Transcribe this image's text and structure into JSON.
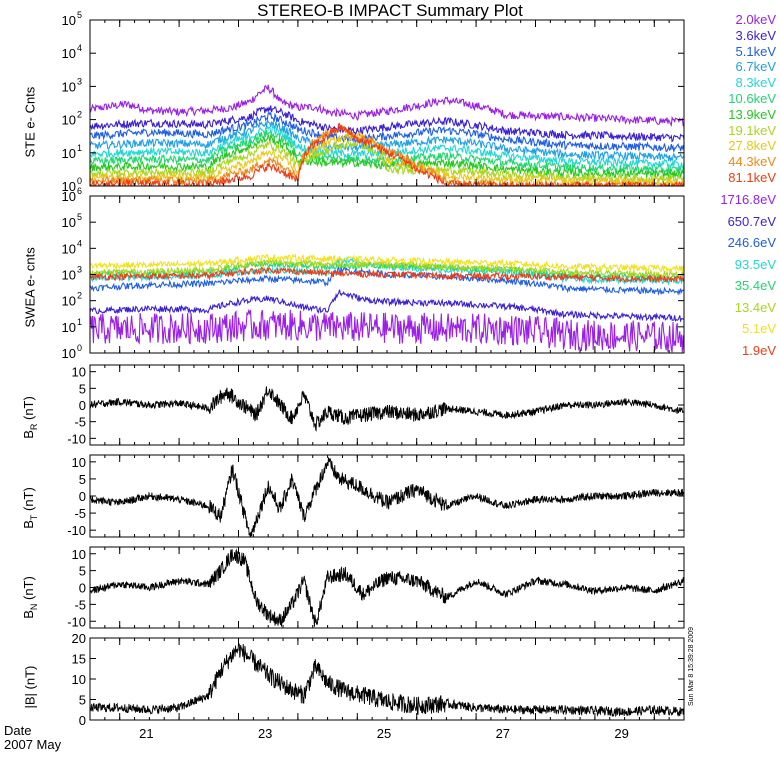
{
  "title": "STEREO-B IMPACT Summary Plot",
  "date_label": "Date",
  "month_label": "2007 May",
  "timestamp": "Sun Mar  8 15:39:28 2009",
  "x_ticks": [
    "21",
    "23",
    "25",
    "27",
    "29"
  ],
  "chart_data": [
    {
      "type": "line",
      "ylabel": "STE e- Cnts",
      "ylog": true,
      "ylim": [
        1,
        100000
      ],
      "y_ticks": [
        "10^0",
        "10^1",
        "10^2",
        "10^3",
        "10^4",
        "10^5"
      ],
      "series": [
        {
          "name": "2.0keV",
          "color": "#9b1fe8",
          "x": [
            20.0,
            20.6,
            21.0,
            21.5,
            22.0,
            22.4,
            22.7,
            23.0,
            23.2,
            23.5,
            23.8,
            24.0,
            24.5,
            25.0,
            25.5,
            26.0,
            26.5,
            27.0,
            28.0,
            29.0,
            30.0
          ],
          "values": [
            200,
            290,
            190,
            170,
            190,
            230,
            350,
            900,
            330,
            230,
            240,
            170,
            130,
            180,
            260,
            380,
            260,
            140,
            120,
            100,
            85
          ]
        },
        {
          "name": "3.6keV",
          "color": "#3a1fd6",
          "x": [
            20.0,
            21.0,
            22.0,
            22.7,
            23.0,
            23.5,
            24.0,
            24.5,
            25.0,
            26.0,
            27.0,
            28.0,
            30.0
          ],
          "values": [
            65,
            80,
            70,
            120,
            220,
            90,
            55,
            45,
            60,
            90,
            45,
            35,
            28
          ]
        },
        {
          "name": "5.1keV",
          "color": "#1e5de8",
          "x": [
            20.0,
            21.0,
            22.0,
            22.7,
            23.0,
            23.5,
            24.0,
            24.5,
            25.0,
            26.0,
            27.0,
            28.0,
            30.0
          ],
          "values": [
            32,
            42,
            36,
            70,
            130,
            50,
            30,
            25,
            32,
            48,
            25,
            17,
            14
          ]
        },
        {
          "name": "6.7keV",
          "color": "#1fa0e8",
          "x": [
            20.0,
            21.0,
            22.0,
            22.7,
            23.0,
            23.5,
            24.0,
            24.5,
            25.0,
            26.0,
            27.0,
            28.0,
            30.0
          ],
          "values": [
            16,
            20,
            18,
            45,
            80,
            26,
            16,
            14,
            17,
            25,
            13,
            9,
            7
          ]
        },
        {
          "name": "8.3keV",
          "color": "#22d6d6",
          "x": [
            20.0,
            21.0,
            22.0,
            22.7,
            23.0,
            23.5,
            24.0,
            24.5,
            25.0,
            26.0,
            27.0,
            28.0,
            30.0
          ],
          "values": [
            9,
            11,
            10,
            30,
            55,
            15,
            10,
            9,
            10,
            14,
            8,
            5.5,
            4.5
          ]
        },
        {
          "name": "10.6keV",
          "color": "#22d670",
          "x": [
            20.0,
            21.0,
            22.0,
            22.7,
            23.0,
            23.5,
            24.0,
            24.5,
            25.0,
            26.0,
            27.0,
            28.0,
            30.0
          ],
          "values": [
            5.5,
            6.5,
            6,
            22,
            40,
            9,
            7,
            6.5,
            6,
            8,
            5,
            3.6,
            3
          ]
        },
        {
          "name": "13.9keV",
          "color": "#24c81e",
          "x": [
            20.0,
            21.0,
            22.0,
            22.7,
            23.0,
            23.5,
            24.0,
            24.5,
            25.0,
            26.0,
            27.0,
            28.0,
            30.0
          ],
          "values": [
            3.6,
            4,
            3.8,
            15,
            28,
            6,
            5,
            5,
            4,
            5,
            3.2,
            2.5,
            2.2
          ]
        },
        {
          "name": "19.1keV",
          "color": "#a8d61e",
          "x": [
            20.0,
            21.0,
            22.0,
            22.7,
            23.0,
            23.5,
            24.0,
            24.5,
            25.0,
            26.0,
            27.0,
            28.0,
            30.0
          ],
          "values": [
            2.4,
            2.6,
            2.5,
            9,
            18,
            4,
            12,
            20,
            3,
            3,
            2.2,
            1.8,
            1.6
          ]
        },
        {
          "name": "27.8keV",
          "color": "#e8c81e",
          "x": [
            20.0,
            21.0,
            22.0,
            22.7,
            23.0,
            23.5,
            24.0,
            24.5,
            25.0,
            26.0,
            27.0,
            28.0,
            30.0
          ],
          "values": [
            1.8,
            1.9,
            1.8,
            5,
            10,
            2.6,
            20,
            35,
            6,
            2,
            1.6,
            1.4,
            1.3
          ]
        },
        {
          "name": "44.3keV",
          "color": "#f08a1a",
          "x": [
            20.0,
            21.0,
            22.0,
            22.7,
            23.0,
            23.5,
            24.0,
            24.2,
            24.5,
            25.0,
            25.5,
            26.0,
            27.0,
            30.0
          ],
          "values": [
            1.4,
            1.5,
            1.4,
            3,
            6,
            1.8,
            40,
            55,
            30,
            12,
            4,
            1.3,
            1.1,
            1
          ]
        },
        {
          "name": "81.1keV",
          "color": "#f03c14",
          "x": [
            20.0,
            21.0,
            22.0,
            22.7,
            23.0,
            23.5,
            24.0,
            24.2,
            24.5,
            25.0,
            25.5,
            26.0,
            27.0,
            30.0
          ],
          "values": [
            1.1,
            1.2,
            1.1,
            2,
            4,
            1.3,
            30,
            60,
            25,
            10,
            3,
            1.1,
            1,
            1
          ]
        }
      ]
    },
    {
      "type": "line",
      "ylabel": "SWEA e- cnts",
      "ylog": true,
      "ylim": [
        1,
        1000000
      ],
      "y_ticks": [
        "10^0",
        "10^1",
        "10^2",
        "10^3",
        "10^4",
        "10^5",
        "10^6"
      ],
      "series": [
        {
          "name": "1716.8eV",
          "color": "#9b1fe8",
          "x": [
            20.0,
            22.0,
            23.0,
            24.0,
            25.0,
            27.0,
            28.0,
            30.0
          ],
          "values": [
            8,
            9,
            12,
            10,
            9,
            8,
            5,
            4
          ]
        },
        {
          "name": "650.7eV",
          "color": "#3a1fd6",
          "x": [
            20.0,
            21.0,
            22.0,
            22.5,
            23.0,
            23.5,
            24.0,
            24.2,
            24.6,
            25.0,
            26.0,
            27.0,
            28.0,
            29.0,
            30.0
          ],
          "values": [
            40,
            50,
            45,
            90,
            120,
            60,
            40,
            200,
            110,
            90,
            80,
            60,
            30,
            25,
            22
          ]
        },
        {
          "name": "246.6eV",
          "color": "#1e5de8",
          "x": [
            20.0,
            21.0,
            22.0,
            23.0,
            24.0,
            24.2,
            25.0,
            26.0,
            27.0,
            28.0,
            29.0,
            30.0
          ],
          "values": [
            300,
            400,
            450,
            700,
            500,
            1500,
            1000,
            800,
            600,
            300,
            250,
            220
          ]
        },
        {
          "name": "93.5eV",
          "color": "#22d6d6",
          "x": [
            20.0,
            21.0,
            22.0,
            23.0,
            24.0,
            24.2,
            25.0,
            26.0,
            27.0,
            28.0,
            29.0,
            30.0
          ],
          "values": [
            700,
            800,
            900,
            1500,
            1200,
            3500,
            2000,
            1500,
            1200,
            700,
            600,
            550
          ]
        },
        {
          "name": "35.4eV",
          "color": "#22d670",
          "x": [
            20.0,
            21.0,
            22.0,
            23.0,
            24.0,
            25.0,
            26.0,
            27.0,
            28.0,
            29.0,
            30.0
          ],
          "values": [
            1000,
            1100,
            1300,
            2500,
            2000,
            2200,
            1800,
            1500,
            1000,
            900,
            800
          ]
        },
        {
          "name": "13.4eV",
          "color": "#a8d61e",
          "x": [
            20.0,
            21.0,
            22.0,
            23.0,
            24.0,
            25.0,
            26.0,
            27.0,
            28.0,
            29.0,
            30.0
          ],
          "values": [
            1200,
            1300,
            1500,
            3000,
            2500,
            2400,
            2000,
            1700,
            1200,
            1100,
            1000
          ]
        },
        {
          "name": "5.1eV",
          "color": "#f0e01e",
          "x": [
            20.0,
            21.0,
            22.0,
            23.0,
            24.0,
            25.0,
            26.0,
            27.0,
            28.0,
            29.0,
            30.0
          ],
          "values": [
            2200,
            2300,
            2600,
            4500,
            4000,
            3500,
            3000,
            2700,
            2000,
            1800,
            1700
          ]
        },
        {
          "name": "1.9eV",
          "color": "#f03c14",
          "x": [
            20.0,
            21.0,
            22.0,
            23.0,
            24.0,
            25.0,
            26.0,
            27.0,
            28.0,
            29.0,
            30.0
          ],
          "values": [
            800,
            850,
            900,
            1500,
            1100,
            1000,
            900,
            850,
            800,
            700,
            650
          ]
        }
      ]
    },
    {
      "type": "line",
      "ylabel": "B_R (nT)",
      "ylim": [
        -12,
        12
      ],
      "y_ticks": [
        "-10",
        "-5",
        "0",
        "5",
        "10"
      ],
      "series": [
        {
          "color": "#000000",
          "x": [
            20.0,
            20.5,
            21.0,
            21.5,
            22.0,
            22.3,
            22.5,
            22.8,
            23.0,
            23.2,
            23.4,
            23.6,
            23.8,
            24.0,
            24.3,
            24.6,
            25.0,
            25.5,
            26.0,
            26.5,
            27.0,
            27.5,
            28.0,
            28.5,
            29.0,
            29.5,
            30.0
          ],
          "values": [
            0,
            1,
            0,
            0.5,
            -1,
            4,
            1,
            -3,
            5,
            0,
            -4,
            3,
            -6,
            -2,
            -4,
            -3,
            -2,
            -3,
            -1,
            -2,
            -3,
            -2,
            0,
            0,
            1,
            0,
            -2
          ]
        }
      ]
    },
    {
      "type": "line",
      "ylabel": "B_T (nT)",
      "ylim": [
        -12,
        12
      ],
      "y_ticks": [
        "-10",
        "-5",
        "0",
        "5",
        "10"
      ],
      "series": [
        {
          "color": "#000000",
          "x": [
            20.0,
            20.5,
            21.0,
            21.5,
            22.0,
            22.2,
            22.4,
            22.7,
            23.0,
            23.2,
            23.4,
            23.6,
            23.8,
            24.0,
            24.2,
            24.5,
            25.0,
            25.5,
            26.0,
            26.5,
            27.0,
            27.5,
            28.0,
            28.5,
            29.0,
            29.5,
            30.0
          ],
          "values": [
            -1,
            -2,
            0,
            -1,
            -3,
            -6,
            8,
            -12,
            3,
            -4,
            5,
            -6,
            2,
            10,
            5,
            3,
            -2,
            2,
            -3,
            0,
            -3,
            -1,
            -1,
            0,
            0,
            1,
            1
          ]
        }
      ]
    },
    {
      "type": "line",
      "ylabel": "B_N (nT)",
      "ylim": [
        -12,
        12
      ],
      "y_ticks": [
        "-10",
        "-5",
        "0",
        "5",
        "10"
      ],
      "series": [
        {
          "color": "#000000",
          "x": [
            20.0,
            20.5,
            21.0,
            21.5,
            22.0,
            22.2,
            22.4,
            22.6,
            22.8,
            23.0,
            23.2,
            23.4,
            23.6,
            23.8,
            24.0,
            24.3,
            24.6,
            25.0,
            25.5,
            26.0,
            26.5,
            27.0,
            27.5,
            28.0,
            28.5,
            29.0,
            29.5,
            30.0
          ],
          "values": [
            -1,
            1,
            0,
            2,
            1,
            5,
            10,
            8,
            -4,
            -8,
            -10,
            -5,
            2,
            -11,
            3,
            4,
            -2,
            3,
            2,
            -3,
            2,
            -2,
            2,
            1,
            -1,
            0,
            -1,
            2
          ]
        }
      ]
    },
    {
      "type": "line",
      "ylabel": "|B| (nT)",
      "ylim": [
        0,
        20
      ],
      "y_ticks": [
        "0",
        "5",
        "10",
        "15",
        "20"
      ],
      "series": [
        {
          "color": "#000000",
          "x": [
            20.0,
            20.5,
            21.0,
            21.5,
            22.0,
            22.2,
            22.4,
            22.5,
            22.7,
            23.0,
            23.3,
            23.6,
            23.8,
            24.0,
            24.3,
            24.6,
            25.0,
            25.5,
            26.0,
            26.5,
            27.0,
            28.0,
            29.0,
            29.5,
            30.0
          ],
          "values": [
            3,
            3,
            2.5,
            3,
            6,
            12,
            16,
            17.5,
            15,
            11,
            8,
            6,
            13,
            9,
            7,
            6,
            4.5,
            3.5,
            4,
            3,
            2.5,
            2.5,
            2,
            2.5,
            2
          ]
        }
      ]
    }
  ],
  "legends": {
    "ste": [
      "2.0keV",
      "3.6keV",
      "5.1keV",
      "6.7keV",
      "8.3keV",
      "10.6keV",
      "13.9keV",
      "19.1keV",
      "27.8keV",
      "44.3keV",
      "81.1keV"
    ],
    "ste_colors": [
      "#9b1fe8",
      "#3a1fd6",
      "#1e5de8",
      "#1fa0e8",
      "#22d6d6",
      "#22d670",
      "#24c81e",
      "#a8d61e",
      "#e8c81e",
      "#f08a1a",
      "#f03c14"
    ],
    "swea": [
      "1716.8eV",
      "650.7eV",
      "246.6eV",
      "93.5eV",
      "35.4eV",
      "13.4eV",
      "5.1eV",
      "1.9eV"
    ],
    "swea_colors": [
      "#9b1fe8",
      "#3a1fd6",
      "#1e5de8",
      "#22d6d6",
      "#22d670",
      "#a8d61e",
      "#f0e01e",
      "#f03c14"
    ]
  }
}
